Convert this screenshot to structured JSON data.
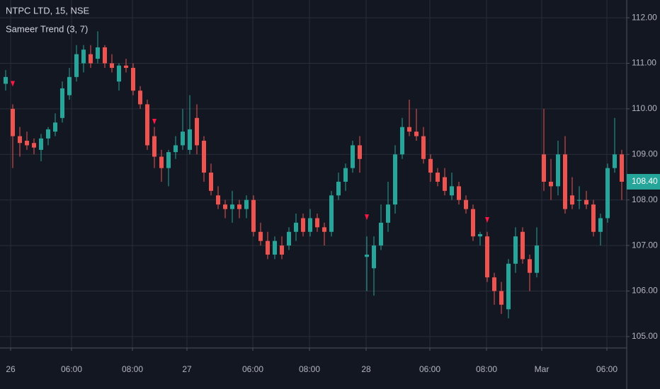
{
  "chart_data": {
    "type": "candlestick",
    "title": "NTPC LTD, 15, NSE",
    "indicator": "Sameer Trend (3, 7)",
    "up_color": "#26a69a",
    "down_color": "#ef5350",
    "grid": true,
    "x": [
      0,
      1,
      2,
      3,
      4,
      5,
      6,
      7,
      8,
      9,
      10,
      11,
      12,
      13,
      14,
      15,
      16,
      17,
      18,
      19,
      20,
      21,
      22,
      23,
      24,
      25,
      26,
      27,
      28,
      29,
      30,
      31,
      32,
      33,
      34,
      35,
      36,
      37,
      38,
      39,
      40,
      41,
      42,
      43,
      44,
      45,
      46,
      47,
      48,
      49,
      50,
      51,
      52,
      53,
      54,
      55,
      56,
      57,
      58,
      59,
      60,
      61,
      62,
      63,
      64,
      65,
      66,
      67,
      68,
      69,
      70,
      71,
      72,
      73,
      74,
      75,
      76,
      77,
      78,
      79,
      80,
      81,
      82,
      83,
      84,
      85,
      86,
      87
    ],
    "open": [
      110.55,
      110.0,
      109.4,
      109.3,
      109.25,
      109.1,
      109.35,
      109.5,
      109.8,
      110.3,
      110.7,
      111.0,
      111.2,
      111.1,
      111.35,
      111.0,
      110.6,
      110.95,
      110.9,
      110.4,
      110.1,
      109.4,
      108.95,
      108.7,
      109.05,
      109.2,
      109.1,
      109.8,
      109.3,
      108.6,
      108.1,
      107.9,
      107.8,
      107.9,
      107.8,
      108.0,
      107.3,
      107.1,
      106.8,
      107.0,
      107.0,
      107.3,
      107.6,
      107.3,
      107.6,
      107.4,
      107.3,
      108.1,
      108.4,
      108.7,
      109.2,
      106.75,
      106.5,
      107.0,
      107.5,
      107.9,
      109.0,
      109.6,
      109.5,
      109.4,
      108.9,
      108.6,
      108.5,
      108.1,
      108.3,
      108.0,
      107.8,
      107.2,
      107.2,
      106.3,
      106.0,
      105.6,
      106.6,
      107.3,
      106.7,
      106.4,
      109.0,
      108.4,
      108.3,
      109.0,
      108.1,
      108.0,
      108.0,
      107.9,
      107.3,
      107.6,
      108.7,
      109.0
    ],
    "high": [
      110.85,
      110.1,
      109.6,
      109.5,
      109.35,
      109.45,
      109.6,
      109.9,
      110.6,
      110.9,
      111.4,
      111.4,
      111.4,
      111.7,
      111.4,
      111.2,
      111.0,
      111.1,
      111.0,
      110.5,
      110.2,
      109.6,
      109.1,
      109.1,
      109.4,
      110.0,
      110.3,
      110.1,
      109.4,
      108.8,
      108.3,
      108.0,
      108.2,
      108.0,
      108.1,
      108.1,
      107.5,
      107.3,
      107.2,
      107.2,
      107.4,
      107.7,
      107.7,
      107.8,
      107.7,
      107.5,
      108.2,
      108.6,
      108.8,
      109.3,
      109.4,
      107.2,
      107.2,
      107.9,
      108.4,
      109.2,
      109.8,
      110.2,
      110.0,
      109.6,
      109.0,
      108.7,
      108.7,
      108.6,
      108.4,
      108.1,
      107.9,
      107.3,
      107.3,
      106.4,
      106.2,
      106.7,
      107.4,
      107.4,
      106.8,
      107.4,
      110.0,
      108.9,
      109.3,
      109.4,
      108.5,
      108.3,
      108.2,
      108.0,
      107.7,
      108.8,
      109.8,
      109.1
    ],
    "low": [
      110.4,
      108.7,
      108.95,
      109.1,
      109.0,
      108.85,
      109.2,
      109.4,
      109.7,
      110.2,
      110.6,
      110.8,
      110.9,
      111.0,
      110.9,
      110.8,
      110.4,
      110.8,
      110.3,
      110.0,
      109.1,
      108.7,
      108.4,
      108.3,
      108.9,
      109.1,
      109.0,
      109.0,
      108.4,
      108.1,
      107.8,
      107.6,
      107.5,
      107.6,
      107.6,
      107.2,
      107.0,
      106.7,
      106.7,
      106.7,
      106.9,
      107.1,
      107.2,
      107.2,
      107.3,
      107.0,
      107.2,
      108.0,
      108.2,
      108.6,
      108.6,
      106.0,
      105.9,
      106.9,
      107.3,
      107.7,
      108.9,
      109.4,
      109.3,
      108.8,
      108.4,
      108.3,
      108.1,
      108.0,
      107.9,
      107.7,
      107.1,
      107.0,
      106.2,
      105.7,
      105.5,
      105.4,
      106.4,
      106.6,
      106.0,
      106.3,
      108.2,
      108.0,
      108.1,
      107.7,
      107.8,
      107.8,
      107.8,
      107.2,
      107.0,
      107.5,
      108.6,
      108.0
    ],
    "close": [
      110.7,
      109.4,
      109.25,
      109.2,
      109.15,
      109.35,
      109.55,
      109.7,
      110.45,
      110.7,
      111.2,
      111.3,
      111.0,
      111.35,
      111.0,
      110.9,
      110.95,
      110.9,
      110.4,
      110.1,
      109.2,
      108.95,
      108.7,
      109.05,
      109.2,
      109.5,
      109.55,
      109.2,
      108.6,
      108.2,
      107.9,
      107.8,
      107.9,
      107.8,
      108.0,
      107.3,
      107.1,
      106.8,
      107.1,
      106.8,
      107.3,
      107.5,
      107.3,
      107.6,
      107.4,
      107.3,
      108.1,
      108.4,
      108.7,
      109.2,
      108.9,
      106.8,
      107.0,
      107.5,
      107.9,
      109.0,
      109.6,
      109.5,
      109.4,
      108.9,
      108.6,
      108.4,
      108.2,
      108.3,
      108.0,
      107.8,
      107.2,
      107.25,
      106.3,
      106.0,
      105.7,
      106.6,
      107.2,
      106.7,
      106.4,
      107.0,
      108.4,
      108.3,
      109.0,
      107.8,
      107.9,
      108.0,
      107.9,
      107.3,
      107.6,
      108.7,
      109.0,
      108.4
    ],
    "signals": {
      "color": "#ff1744",
      "x": [
        1,
        21,
        51,
        68
      ],
      "values": [
        110.55,
        109.72,
        107.62,
        107.56
      ]
    },
    "last_price": {
      "value": 108.4,
      "label": "108.40"
    },
    "xlim": [
      -0.8,
      87.7
    ],
    "ylim": [
      104.75,
      112.39
    ],
    "yticks": [
      {
        "value": 105,
        "label": "105.00"
      },
      {
        "value": 106,
        "label": "106.00"
      },
      {
        "value": 107,
        "label": "107.00"
      },
      {
        "value": 108,
        "label": "108.00"
      },
      {
        "value": 109,
        "label": "109.00"
      },
      {
        "value": 110,
        "label": "110.00"
      },
      {
        "value": 111,
        "label": "111.00"
      },
      {
        "value": 112,
        "label": "112.00"
      }
    ],
    "xticks": [
      {
        "value": 0.7,
        "label": "26"
      },
      {
        "value": 9.3,
        "label": "06:00"
      },
      {
        "value": 17.9,
        "label": "08:00"
      },
      {
        "value": 25.6,
        "label": "27"
      },
      {
        "value": 34.9,
        "label": "06:00"
      },
      {
        "value": 42.9,
        "label": "08:00"
      },
      {
        "value": 50.9,
        "label": "28"
      },
      {
        "value": 59.9,
        "label": "06:00"
      },
      {
        "value": 67.9,
        "label": "08:00"
      },
      {
        "value": 75.7,
        "label": "Mar"
      },
      {
        "value": 84.9,
        "label": "06:00"
      }
    ]
  }
}
